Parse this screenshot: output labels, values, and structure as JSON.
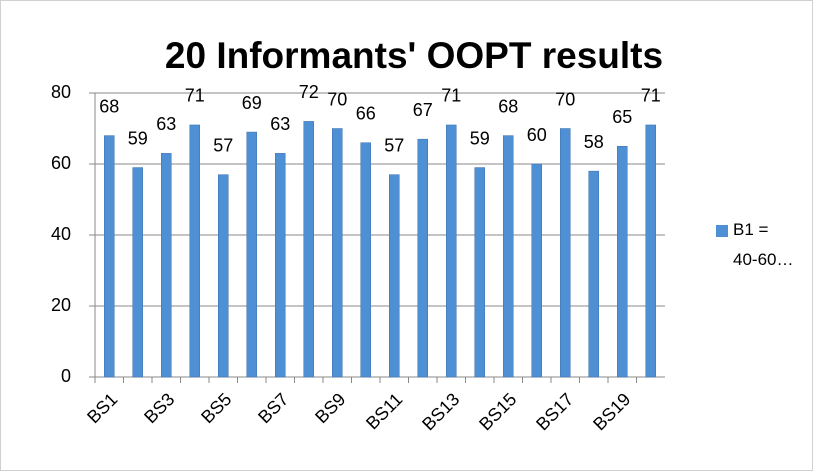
{
  "chart_data": {
    "type": "bar",
    "title": "20 Informants' OOPT results",
    "categories": [
      "BS1",
      null,
      "BS3",
      null,
      "BS5",
      null,
      "BS7",
      null,
      "BS9",
      null,
      "BS11",
      null,
      "BS13",
      null,
      "BS15",
      null,
      "BS17",
      null,
      "BS19",
      null
    ],
    "series": [
      {
        "name": "B1 = 40-60…",
        "color": "#4f8fd4",
        "values": [
          68,
          59,
          63,
          71,
          57,
          69,
          63,
          72,
          70,
          66,
          57,
          67,
          71,
          59,
          68,
          60,
          70,
          58,
          65,
          71
        ]
      }
    ],
    "ylim": [
      0,
      80
    ],
    "yticks": [
      0,
      20,
      40,
      60,
      80
    ],
    "grid": true,
    "legend": "right"
  }
}
